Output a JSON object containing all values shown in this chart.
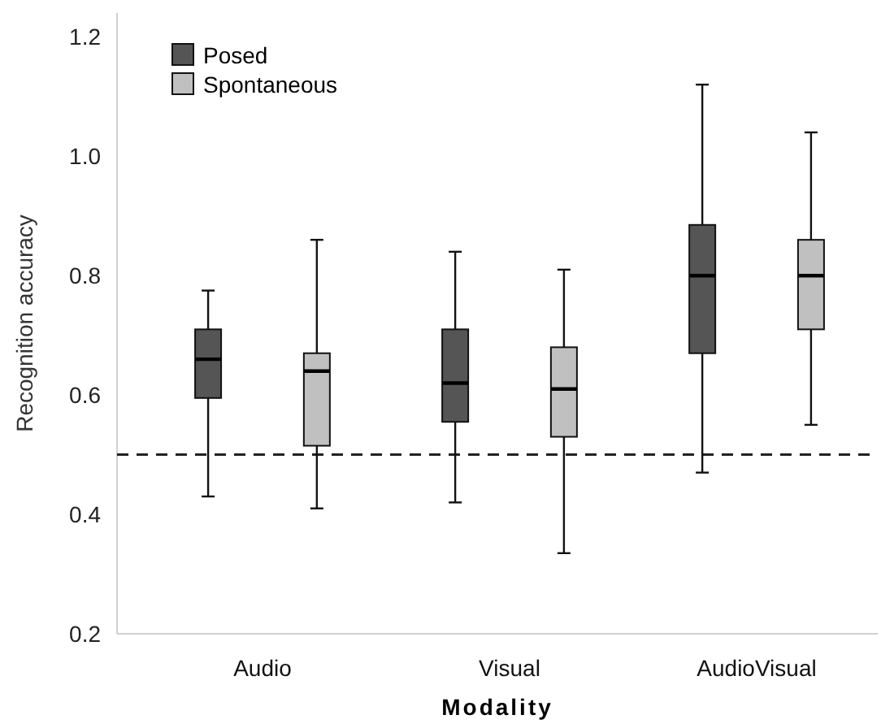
{
  "chart_data": {
    "type": "box",
    "xlabel": "Modality",
    "ylabel": "Recognition accuracy",
    "categories": [
      "Audio",
      "Visual",
      "AudioVisual"
    ],
    "ylim": [
      0.2,
      1.24
    ],
    "yticks": [
      {
        "value": 0.2,
        "label": "0.2"
      },
      {
        "value": 0.4,
        "label": "0.4"
      },
      {
        "value": 0.6,
        "label": "0.6"
      },
      {
        "value": 0.8,
        "label": "0.8"
      },
      {
        "value": 1.0,
        "label": "1.0"
      },
      {
        "value": 1.2,
        "label": "1.2"
      }
    ],
    "grid": false,
    "legend": "top left",
    "series": [
      {
        "name": "Posed",
        "color": "#555555",
        "boxes": [
          {
            "low": 0.43,
            "q1": 0.595,
            "median": 0.66,
            "q3": 0.71,
            "high": 0.775
          },
          {
            "low": 0.42,
            "q1": 0.555,
            "median": 0.62,
            "q3": 0.71,
            "high": 0.84
          },
          {
            "low": 0.47,
            "q1": 0.67,
            "median": 0.8,
            "q3": 0.885,
            "high": 1.12
          }
        ]
      },
      {
        "name": "Spontaneous",
        "color": "#c0c0c0",
        "boxes": [
          {
            "low": 0.41,
            "q1": 0.515,
            "median": 0.64,
            "q3": 0.67,
            "high": 0.86
          },
          {
            "low": 0.335,
            "q1": 0.53,
            "median": 0.61,
            "q3": 0.68,
            "high": 0.81
          },
          {
            "low": 0.55,
            "q1": 0.71,
            "median": 0.8,
            "q3": 0.86,
            "high": 1.04
          }
        ]
      }
    ],
    "ref_lines": [
      {
        "axis": "y",
        "value": 0.5,
        "label": null,
        "color": "#222222",
        "line_style": "dashed"
      }
    ]
  }
}
